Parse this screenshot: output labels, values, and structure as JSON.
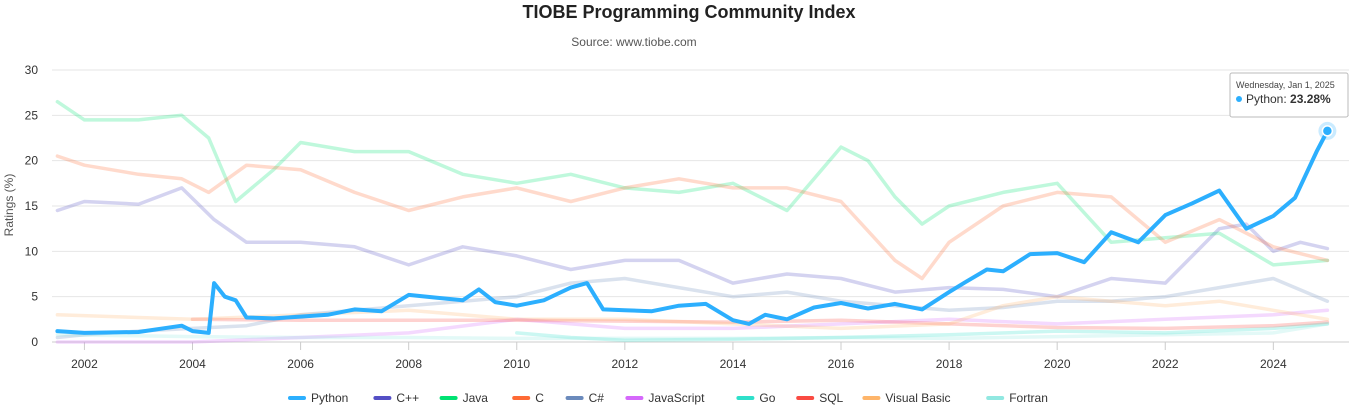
{
  "chart_data": {
    "type": "line",
    "title": "TIOBE Programming Community Index",
    "subtitle": "Source: www.tiobe.com",
    "ylabel": "Ratings (%)",
    "xlabel": "",
    "xlim": [
      2001.4,
      2025.4
    ],
    "ylim": [
      0,
      30
    ],
    "yticks": [
      0,
      5,
      10,
      15,
      20,
      25,
      30
    ],
    "xticks": [
      2002,
      2004,
      2006,
      2008,
      2010,
      2012,
      2014,
      2016,
      2018,
      2020,
      2022,
      2024
    ],
    "grid": true,
    "legend_position": "bottom",
    "series": [
      {
        "name": "Python",
        "color": "#2caffe",
        "highlight": true,
        "x": [
          2001.5,
          2002,
          2003,
          2003.8,
          2004.0,
          2004.3,
          2004.4,
          2004.6,
          2004.8,
          2005,
          2005.5,
          2006,
          2006.5,
          2007,
          2007.5,
          2008,
          2008.5,
          2009,
          2009.3,
          2009.6,
          2010,
          2010.5,
          2011,
          2011.3,
          2011.6,
          2012,
          2012.5,
          2013,
          2013.5,
          2014,
          2014.3,
          2014.6,
          2015,
          2015.5,
          2016,
          2016.5,
          2017,
          2017.5,
          2018,
          2018.3,
          2018.7,
          2019,
          2019.5,
          2020,
          2020.5,
          2021,
          2021.5,
          2022,
          2022.5,
          2023,
          2023.5,
          2024,
          2024.4,
          2024.8,
          2025
        ],
        "y": [
          1.2,
          1.0,
          1.1,
          1.8,
          1.2,
          1.0,
          6.5,
          5.0,
          4.6,
          2.7,
          2.6,
          2.8,
          3.0,
          3.6,
          3.4,
          5.2,
          4.9,
          4.6,
          5.8,
          4.4,
          4.0,
          4.6,
          6.0,
          6.5,
          3.6,
          3.5,
          3.4,
          4.0,
          4.2,
          2.4,
          2.0,
          3.0,
          2.5,
          3.8,
          4.3,
          3.7,
          4.2,
          3.6,
          5.5,
          6.6,
          8.0,
          7.8,
          9.7,
          9.8,
          8.8,
          12.1,
          11.0,
          14.0,
          15.3,
          16.7,
          12.5,
          13.9,
          15.9,
          21.0,
          23.28
        ]
      },
      {
        "name": "C++",
        "color": "#544fc5",
        "highlight": false,
        "x": [
          2001.5,
          2002,
          2003,
          2003.8,
          2004.4,
          2005,
          2006,
          2007,
          2008,
          2009,
          2010,
          2011,
          2012,
          2013,
          2014,
          2015,
          2016,
          2017,
          2018,
          2019,
          2020,
          2021,
          2022,
          2023,
          2023.5,
          2024,
          2024.5,
          2025
        ],
        "y": [
          14.5,
          15.5,
          15.2,
          17.0,
          13.5,
          11.0,
          11.0,
          10.5,
          8.5,
          10.5,
          9.5,
          8.0,
          9.0,
          9.0,
          6.5,
          7.5,
          7.0,
          5.5,
          6.0,
          5.8,
          5.0,
          7.0,
          6.5,
          12.5,
          13.0,
          10.0,
          11.0,
          10.3
        ]
      },
      {
        "name": "Java",
        "color": "#00e272",
        "highlight": false,
        "x": [
          2001.5,
          2002,
          2003,
          2003.8,
          2004.3,
          2004.8,
          2005.5,
          2006,
          2007,
          2008,
          2009,
          2010,
          2011,
          2012,
          2013,
          2014,
          2015,
          2016,
          2016.5,
          2017,
          2017.5,
          2018,
          2019,
          2020,
          2021,
          2022,
          2023,
          2024,
          2025
        ],
        "y": [
          26.5,
          24.5,
          24.5,
          25.0,
          22.5,
          15.5,
          19.0,
          22.0,
          21.0,
          21.0,
          18.5,
          17.5,
          18.5,
          17.0,
          16.5,
          17.5,
          14.5,
          21.5,
          20.0,
          16.0,
          13.0,
          15.0,
          16.5,
          17.5,
          11.0,
          11.5,
          12.0,
          8.5,
          9.0
        ]
      },
      {
        "name": "C",
        "color": "#fe6a35",
        "highlight": false,
        "x": [
          2001.5,
          2002,
          2003,
          2003.8,
          2004.3,
          2005,
          2006,
          2007,
          2008,
          2009,
          2010,
          2011,
          2012,
          2013,
          2014,
          2015,
          2016,
          2017,
          2017.5,
          2018,
          2019,
          2020,
          2021,
          2022,
          2023,
          2024,
          2025
        ],
        "y": [
          20.5,
          19.5,
          18.5,
          18.0,
          16.5,
          19.5,
          19.0,
          16.5,
          14.5,
          16.0,
          17.0,
          15.5,
          17.0,
          18.0,
          17.0,
          17.0,
          15.5,
          9.0,
          7.0,
          11.0,
          15.0,
          16.5,
          16.0,
          11.0,
          13.5,
          10.5,
          9.0
        ]
      },
      {
        "name": "C#",
        "color": "#6b8abc",
        "highlight": false,
        "x": [
          2001.5,
          2002,
          2003,
          2004,
          2005,
          2006,
          2007,
          2008,
          2009,
          2010,
          2011,
          2012,
          2013,
          2014,
          2015,
          2016,
          2017,
          2018,
          2019,
          2020,
          2021,
          2022,
          2023,
          2024,
          2025
        ],
        "y": [
          0.5,
          0.8,
          1.2,
          1.5,
          1.8,
          3.0,
          3.5,
          4.0,
          4.5,
          5.0,
          6.5,
          7.0,
          6.0,
          5.0,
          5.5,
          4.5,
          4.0,
          3.5,
          3.8,
          4.5,
          4.5,
          5.0,
          6.0,
          7.0,
          4.5
        ]
      },
      {
        "name": "JavaScript",
        "color": "#d568fb",
        "highlight": false,
        "x": [
          2001.5,
          2002,
          2004,
          2006,
          2008,
          2010,
          2012,
          2014,
          2016,
          2018,
          2020,
          2022,
          2024,
          2025
        ],
        "y": [
          0.0,
          0.0,
          0.0,
          0.5,
          1.0,
          2.5,
          1.5,
          1.5,
          2.0,
          2.5,
          2.0,
          2.5,
          3.0,
          3.5
        ]
      },
      {
        "name": "Go",
        "color": "#2ee0ca",
        "highlight": false,
        "x": [
          2010,
          2011,
          2012,
          2014,
          2016,
          2018,
          2020,
          2022,
          2024,
          2025
        ],
        "y": [
          1.0,
          0.5,
          0.2,
          0.3,
          0.5,
          0.8,
          1.2,
          1.0,
          1.5,
          2.0
        ]
      },
      {
        "name": "SQL",
        "color": "#fa4b42",
        "highlight": false,
        "x": [
          2004,
          2006,
          2008,
          2010,
          2012,
          2014,
          2016,
          2018,
          2020,
          2022,
          2024,
          2025
        ],
        "y": [
          2.5,
          2.4,
          2.4,
          2.4,
          2.3,
          2.2,
          2.4,
          2.0,
          1.6,
          1.5,
          1.8,
          2.2
        ]
      },
      {
        "name": "Visual Basic",
        "color": "#feb56a",
        "highlight": false,
        "x": [
          2001.5,
          2004,
          2006,
          2008,
          2010,
          2012,
          2014,
          2016,
          2018,
          2019,
          2020,
          2021,
          2022,
          2023,
          2024,
          2025
        ],
        "y": [
          3.0,
          2.5,
          3.0,
          3.5,
          2.5,
          2.5,
          2.0,
          1.5,
          2.0,
          4.0,
          5.0,
          4.5,
          4.0,
          4.5,
          3.5,
          2.5
        ]
      },
      {
        "name": "Fortran",
        "color": "#91e8e1",
        "highlight": false,
        "x": [
          2001.5,
          2004,
          2006,
          2008,
          2010,
          2012,
          2014,
          2016,
          2018,
          2020,
          2022,
          2024,
          2025
        ],
        "y": [
          0.8,
          0.6,
          0.5,
          0.5,
          0.4,
          0.4,
          0.4,
          0.5,
          0.4,
          0.6,
          0.8,
          1.0,
          2.0
        ]
      }
    ],
    "tooltip": {
      "date": "Wednesday, Jan 1, 2025",
      "series": "Python",
      "value_label": "23.28%",
      "x": 2025,
      "y": 23.28
    }
  }
}
